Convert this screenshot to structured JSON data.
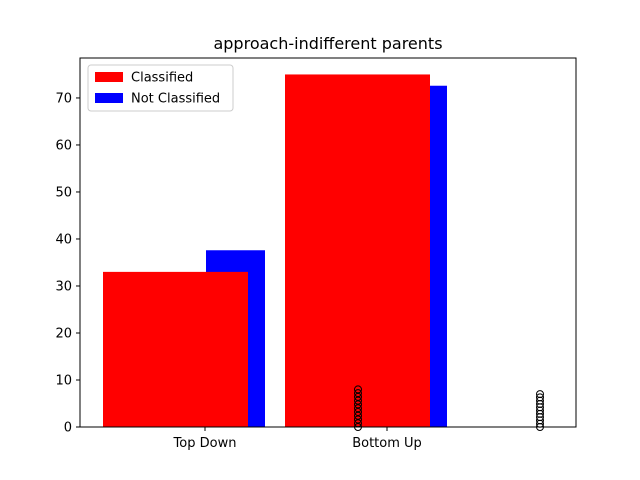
{
  "chart_data": {
    "type": "bar",
    "title": "approach-indifferent parents",
    "xlabel": "",
    "ylabel": "",
    "categories": [
      "Top Down",
      "Bottom Up"
    ],
    "ylim": [
      0,
      78.5
    ],
    "yticks": [
      0,
      10,
      20,
      30,
      40,
      50,
      60,
      70
    ],
    "grid": false,
    "legend_position": "top-left",
    "series": [
      {
        "name": "Not Classified",
        "color": "#0000ff",
        "values": [
          37.6,
          72.6
        ]
      },
      {
        "name": "Classified",
        "color": "#ff0000",
        "values": [
          33.0,
          75.0
        ]
      }
    ],
    "outlier_markers": [
      {
        "group": "Bottom Up",
        "values": [
          0,
          0.8,
          1.6,
          2.4,
          3.2,
          4.0,
          4.8,
          5.6,
          6.4,
          7.2,
          8.0
        ]
      },
      {
        "group": "third",
        "values": [
          0,
          0.7,
          1.4,
          2.1,
          2.8,
          3.5,
          4.2,
          4.9,
          5.6,
          6.3,
          7.0
        ]
      }
    ]
  }
}
